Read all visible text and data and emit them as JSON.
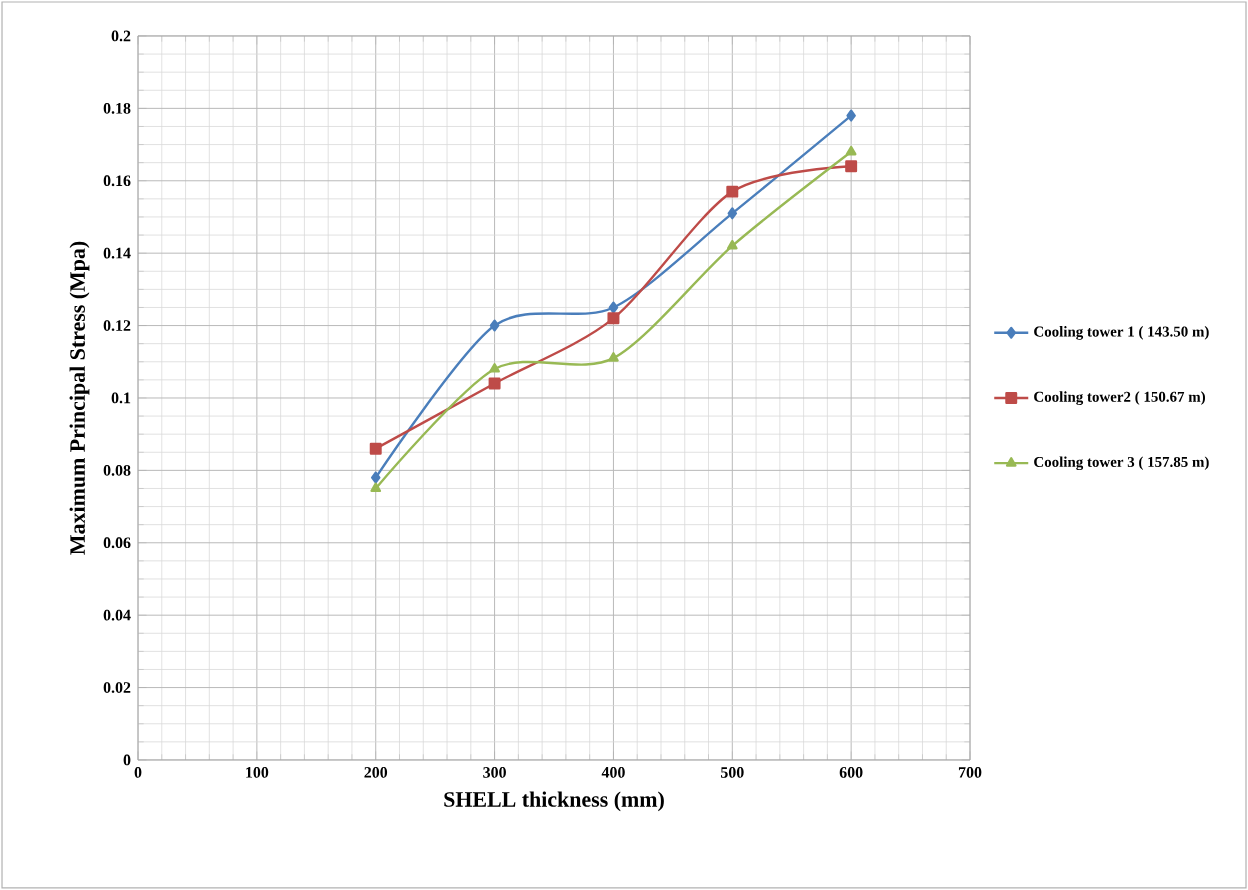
{
  "chart_data": {
    "type": "line",
    "xlabel": "SHELL thickness (mm)",
    "ylabel": "Maximum Principal Stress (Mpa)",
    "x": [
      200,
      300,
      400,
      500,
      600
    ],
    "series": [
      {
        "name": "Cooling tower 1 ( 143.50 m)",
        "color": "#4a7ebb",
        "marker": "diamond",
        "values": [
          0.078,
          0.12,
          0.125,
          0.151,
          0.178
        ]
      },
      {
        "name": "Cooling tower2 ( 150.67 m)",
        "color": "#be4b48",
        "marker": "square",
        "values": [
          0.086,
          0.104,
          0.122,
          0.157,
          0.164
        ]
      },
      {
        "name": "Cooling tower 3 ( 157.85 m)",
        "color": "#98b954",
        "marker": "triangle",
        "values": [
          0.075,
          0.108,
          0.111,
          0.142,
          0.168
        ]
      }
    ],
    "xlim": [
      0,
      700
    ],
    "xticks": [
      0,
      100,
      200,
      300,
      400,
      500,
      600,
      700
    ],
    "ylim": [
      0,
      0.2
    ],
    "yticks": [
      0,
      0.02,
      0.04,
      0.06,
      0.08,
      0.1,
      0.12,
      0.14,
      0.16,
      0.18,
      0.2
    ],
    "grid": true,
    "legend": "right",
    "line_style": "solid"
  }
}
